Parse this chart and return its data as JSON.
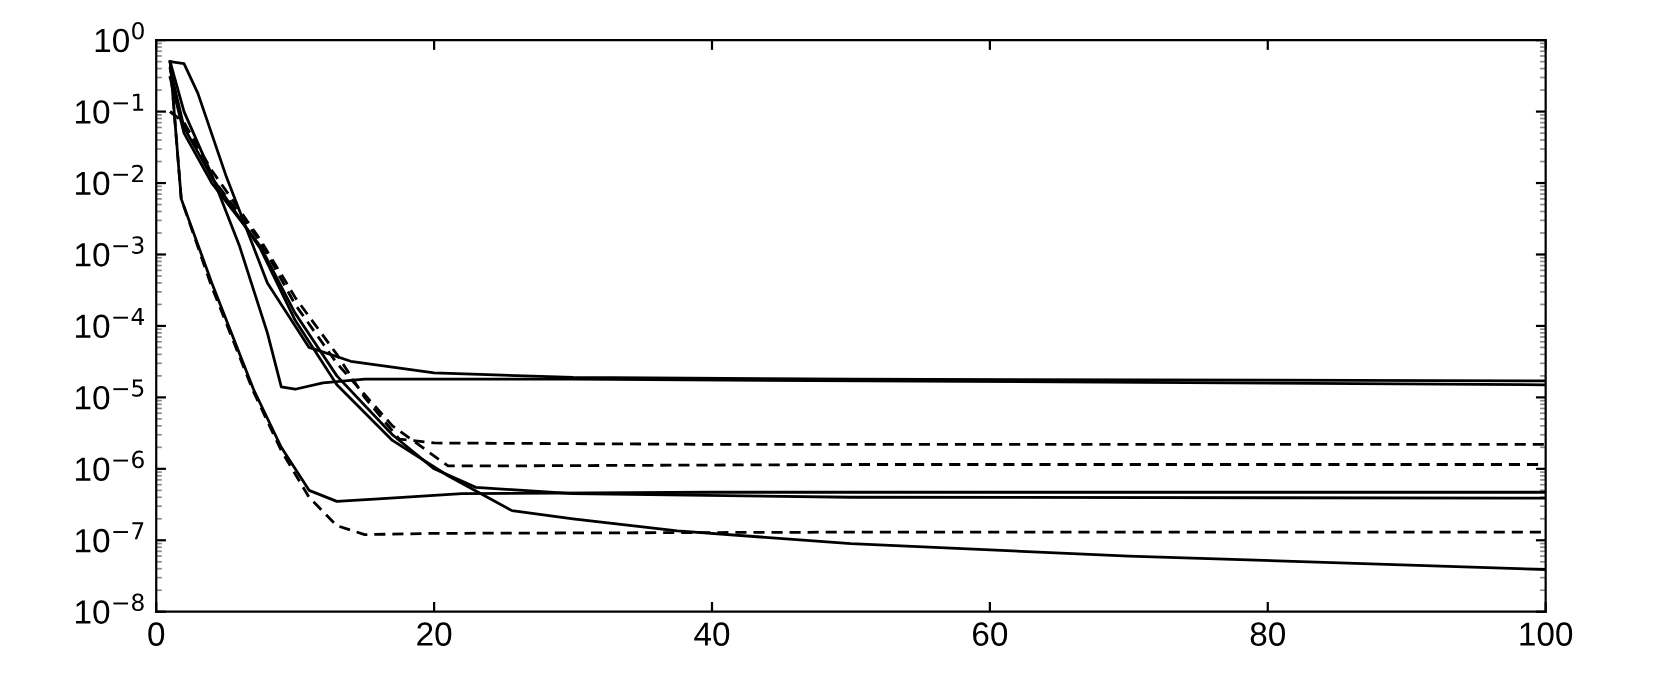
{
  "chart_data": {
    "type": "line",
    "log": "y",
    "grid": false,
    "xlim": [
      0,
      100
    ],
    "xticks": [
      0,
      20,
      40,
      60,
      80,
      100
    ],
    "ylim": [
      1e-08,
      1
    ],
    "yticks": [
      {
        "value": 1e-08,
        "label": "10$^{−8}$"
      },
      {
        "value": 1e-07,
        "label": "10$^{−7}$"
      },
      {
        "value": 1e-06,
        "label": "10$^{−6}$"
      },
      {
        "value": 1e-05,
        "label": "10$^{−5}$"
      },
      {
        "value": 0.0001,
        "label": "10$^{−4}$"
      },
      {
        "value": 0.001,
        "label": "10$^{−3}$"
      },
      {
        "value": 0.01,
        "label": "10$^{−2}$"
      },
      {
        "value": 0.1,
        "label": "10$^{−1}$"
      },
      {
        "value": 1,
        "label": "10$^{0}$"
      }
    ],
    "series": [
      {
        "color": "#000000",
        "line_style": "solid",
        "x": [
          1,
          2,
          3,
          5,
          8,
          11,
          14,
          20,
          30,
          50,
          100
        ],
        "values": [
          0.5,
          0.47,
          0.18,
          0.013,
          0.0004,
          5e-05,
          3.2e-05,
          2.2e-05,
          1.9e-05,
          1.8e-05,
          1.7e-05
        ]
      },
      {
        "color": "#000000",
        "line_style": "solid",
        "x": [
          1,
          2,
          4,
          6,
          8,
          9,
          10,
          12,
          15,
          30,
          100
        ],
        "values": [
          0.5,
          0.1,
          0.013,
          0.0013,
          8e-05,
          1.4e-05,
          1.3e-05,
          1.6e-05,
          1.8e-05,
          1.8e-05,
          1.5e-05
        ]
      },
      {
        "color": "#000000",
        "line_style": "dashed",
        "x": [
          1,
          2,
          4,
          7.5,
          10,
          13,
          15,
          17.5,
          20,
          40,
          100
        ],
        "values": [
          0.1,
          0.07,
          0.015,
          0.0016,
          0.00025,
          4e-05,
          1e-05,
          2.6e-06,
          2.3e-06,
          2.2e-06,
          2.2e-06
        ]
      },
      {
        "color": "#000000",
        "line_style": "dashed",
        "x": [
          1,
          2,
          4,
          7.5,
          10,
          13,
          17,
          21,
          25,
          50,
          100
        ],
        "values": [
          0.1,
          0.07,
          0.012,
          0.0015,
          0.0002,
          3e-05,
          4e-06,
          1.1e-06,
          1.1e-06,
          1.15e-06,
          1.15e-06
        ]
      },
      {
        "color": "#000000",
        "line_style": "solid",
        "x": [
          1,
          1.8,
          4,
          7,
          9,
          11,
          13,
          16,
          22,
          40,
          100
        ],
        "values": [
          0.5,
          0.006,
          0.0004,
          1.3e-05,
          2e-06,
          5e-07,
          3.5e-07,
          3.8e-07,
          4.5e-07,
          4.7e-07,
          4.7e-07
        ]
      },
      {
        "color": "#000000",
        "line_style": "solid",
        "x": [
          1,
          2,
          4,
          7.5,
          10,
          13,
          17,
          20,
          23,
          30,
          50,
          100
        ],
        "values": [
          0.3,
          0.05,
          0.01,
          0.0013,
          0.00015,
          2e-05,
          3e-06,
          1e-06,
          5.5e-07,
          4.5e-07,
          4e-07,
          3.9e-07
        ]
      },
      {
        "color": "#000000",
        "line_style": "dashed",
        "x": [
          1,
          1.8,
          4,
          7,
          9,
          11,
          13,
          15,
          20,
          50,
          100
        ],
        "values": [
          0.5,
          0.006,
          0.00035,
          1.2e-05,
          1.8e-06,
          4e-07,
          1.6e-07,
          1.2e-07,
          1.25e-07,
          1.3e-07,
          1.3e-07
        ]
      },
      {
        "color": "#000000",
        "line_style": "solid",
        "x": [
          1,
          2,
          4,
          7.5,
          10,
          13,
          17,
          21,
          25.6,
          30,
          37.5,
          50,
          70,
          100
        ],
        "values": [
          0.4,
          0.06,
          0.012,
          0.0012,
          0.00012,
          1.5e-05,
          2.5e-06,
          8e-07,
          2.6e-07,
          2e-07,
          1.35e-07,
          9e-08,
          6e-08,
          3.9e-08
        ]
      }
    ]
  }
}
